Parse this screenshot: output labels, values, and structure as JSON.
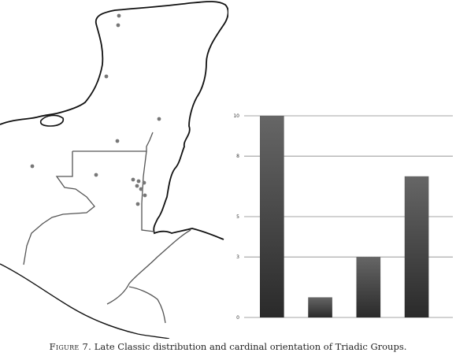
{
  "caption": {
    "label": "Figure 7.",
    "text": "Late Classic distribution and cardinal orientation of Triadic Groups."
  },
  "map": {
    "site_points": [
      {
        "lon_est": 0.26
      },
      {
        "lon_est": 0.26
      },
      {
        "lon_est": 0.23
      },
      {
        "lon_est": 0.35
      },
      {
        "lon_est": 0.26
      },
      {
        "lon_est": 0.07
      },
      {
        "lon_est": 0.21
      },
      {
        "lon_est": 0.29
      },
      {
        "lon_est": 0.3
      },
      {
        "lon_est": 0.31
      },
      {
        "lon_est": 0.3
      },
      {
        "lon_est": 0.31
      },
      {
        "lon_est": 0.32
      },
      {
        "lon_est": 0.3
      }
    ],
    "colors": {
      "coast": "#111111",
      "border": "#555555",
      "points": "#777777"
    }
  },
  "chart_data": {
    "type": "bar",
    "categories": [
      "",
      "",
      "",
      ""
    ],
    "values": [
      10,
      1,
      3,
      7
    ],
    "title": "",
    "xlabel": "",
    "ylabel": "",
    "ylim": [
      0,
      10
    ],
    "y_ticks": [
      0,
      3,
      5,
      8,
      10
    ],
    "grid": true,
    "bar_color": "#2a2a2a"
  }
}
